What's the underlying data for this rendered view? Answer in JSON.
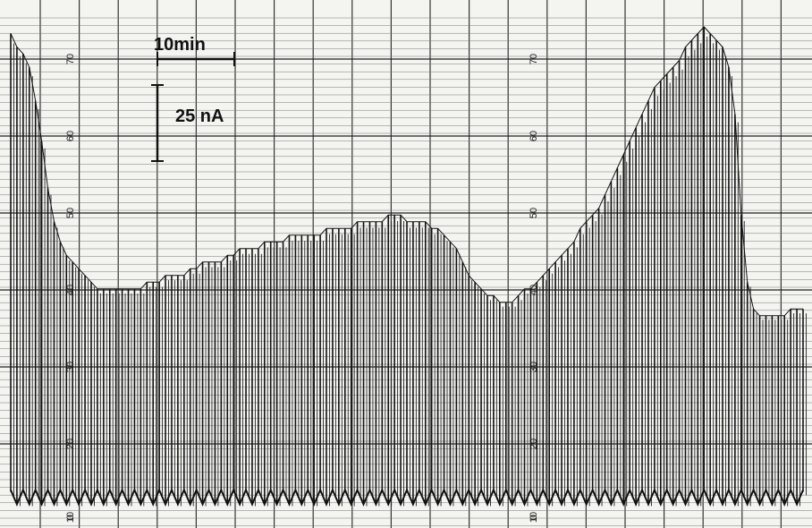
{
  "chart_data": {
    "type": "line",
    "description_visible": "chart recorder trace of repeated current pulses",
    "scale_bars": {
      "time": "10min",
      "current": "25 nA"
    },
    "grid": true,
    "left_axis_ticks": [
      "70",
      "60",
      "50",
      "40",
      "30",
      "20",
      "10",
      "0"
    ],
    "right_axis_ticks": [
      "70",
      "60",
      "50",
      "40",
      "30",
      "20",
      "10",
      "0"
    ],
    "ylim": [
      0,
      75
    ],
    "series": [
      {
        "values": [
          72,
          70,
          69,
          67,
          62,
          56,
          49,
          44,
          41,
          39,
          38,
          37,
          36,
          35,
          34,
          34,
          34,
          34,
          34,
          34,
          34,
          34,
          35,
          35,
          35,
          36,
          36,
          36,
          36,
          37,
          37,
          38,
          38,
          38,
          38,
          39,
          39,
          40,
          40,
          40,
          40,
          41,
          41,
          41,
          41,
          42,
          42,
          42,
          42,
          42,
          42,
          43,
          43,
          43,
          43,
          43,
          44,
          44,
          44,
          44,
          44,
          45,
          45,
          45,
          44,
          44,
          44,
          44,
          43,
          43,
          42,
          41,
          40,
          38,
          36,
          35,
          34,
          33,
          33,
          32,
          32,
          32,
          33,
          34,
          34,
          35,
          36,
          37,
          38,
          39,
          40,
          41,
          43,
          44,
          45,
          46,
          48,
          50,
          52,
          54,
          56,
          58,
          60,
          62,
          64,
          65,
          66,
          67,
          68,
          70,
          71,
          72,
          73,
          72,
          71,
          70,
          67,
          60,
          45,
          35,
          31,
          30,
          30,
          30,
          30,
          30,
          31,
          31,
          31
        ]
      }
    ],
    "baseline": 3
  }
}
